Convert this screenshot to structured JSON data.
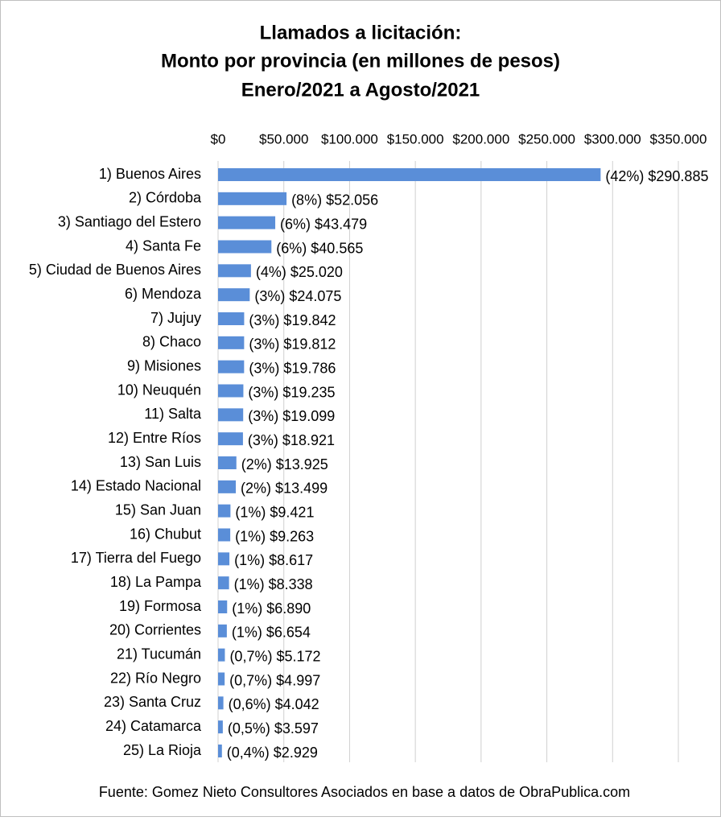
{
  "chart_data": {
    "type": "hbar",
    "title": [
      "Llamados a licitación:",
      "Monto por provincia (en millones de pesos)",
      "Enero/2021 a Agosto/2021"
    ],
    "source": "Fuente: Gomez Nieto Consultores Asociados en base a datos de ObraPublica.com",
    "categories": [
      "1) Buenos Aires",
      "2) Córdoba",
      "3) Santiago del Estero",
      "4) Santa Fe",
      "5) Ciudad de Buenos Aires",
      "6) Mendoza",
      "7) Jujuy",
      "8) Chaco",
      "9) Misiones",
      "10) Neuquén",
      "11) Salta",
      "12) Entre Ríos",
      "13) San Luis",
      "14) Estado Nacional",
      "15) San Juan",
      "16) Chubut",
      "17) Tierra del Fuego",
      "18) La Pampa",
      "19) Formosa",
      "20) Corrientes",
      "21) Tucumán",
      "22) Río Negro",
      "23) Santa Cruz",
      "24) Catamarca",
      "25) La Rioja"
    ],
    "values": [
      290885,
      52056,
      43479,
      40565,
      25020,
      24075,
      19842,
      19812,
      19786,
      19235,
      19099,
      18921,
      13925,
      13499,
      9421,
      9263,
      8617,
      8338,
      6890,
      6654,
      5172,
      4997,
      4042,
      3597,
      2929
    ],
    "value_labels": [
      "(42%) $290.885",
      "(8%) $52.056",
      "(6%) $43.479",
      "(6%) $40.565",
      "(4%) $25.020",
      "(3%) $24.075",
      "(3%) $19.842",
      "(3%) $19.812",
      "(3%) $19.786",
      "(3%) $19.235",
      "(3%) $19.099",
      "(3%) $18.921",
      "(2%) $13.925",
      "(2%) $13.499",
      "(1%) $9.421",
      "(1%) $9.263",
      "(1%) $8.617",
      "(1%) $8.338",
      "(1%) $6.890",
      "(1%) $6.654",
      "(0,7%) $5.172",
      "(0,7%) $4.997",
      "(0,6%) $4.042",
      "(0,5%) $3.597",
      "(0,4%) $2.929"
    ],
    "color": "#5a8ed8",
    "xlim": [
      0,
      350000
    ],
    "xticks": [
      {
        "value": 0,
        "label": "$0"
      },
      {
        "value": 50000,
        "label": "$50.000"
      },
      {
        "value": 100000,
        "label": "$100.000"
      },
      {
        "value": 150000,
        "label": "$150.000"
      },
      {
        "value": 200000,
        "label": "$200.000"
      },
      {
        "value": 250000,
        "label": "$250.000"
      },
      {
        "value": 300000,
        "label": "$300.000"
      },
      {
        "value": 350000,
        "label": "$350.000"
      }
    ],
    "grid": true
  }
}
